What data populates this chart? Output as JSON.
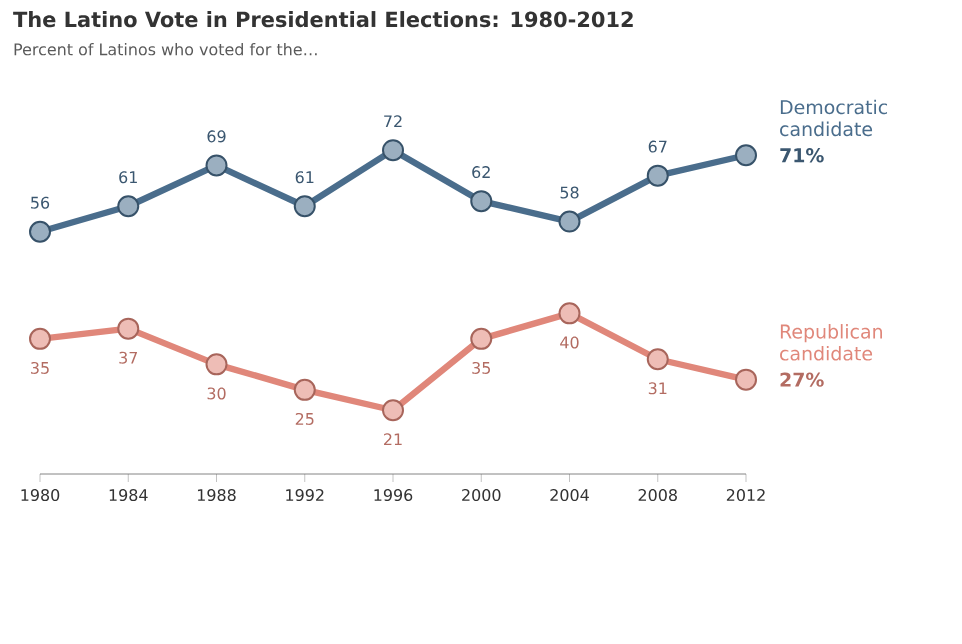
{
  "chart_data": {
    "type": "line",
    "title": "The Latino Vote in Presidential Elections: 1980-2012",
    "subtitle": "Percent of Latinos who voted for the…",
    "x": [
      1980,
      1984,
      1988,
      1992,
      1996,
      2000,
      2004,
      2008,
      2012
    ],
    "xlim": [
      1980,
      2012
    ],
    "xticks": [
      1980,
      1984,
      1988,
      1992,
      1996,
      2000,
      2004,
      2008,
      2012
    ],
    "series": [
      {
        "name": "Democratic candidate",
        "color": "#4a6d8c",
        "values": [
          56,
          61,
          69,
          61,
          72,
          62,
          58,
          67,
          71
        ],
        "value_labels": [
          "56",
          "61",
          "69",
          "61",
          "72",
          "62",
          "58",
          "67",
          "71%"
        ]
      },
      {
        "name": "Republican candidate",
        "color": "#e0877a",
        "values": [
          35,
          37,
          30,
          25,
          21,
          35,
          40,
          31,
          27
        ],
        "value_labels": [
          "35",
          "37",
          "30",
          "25",
          "21",
          "35",
          "40",
          "31",
          "27%"
        ]
      }
    ],
    "marker": "circle",
    "line_style": "solid",
    "grid": false,
    "legend": false
  }
}
